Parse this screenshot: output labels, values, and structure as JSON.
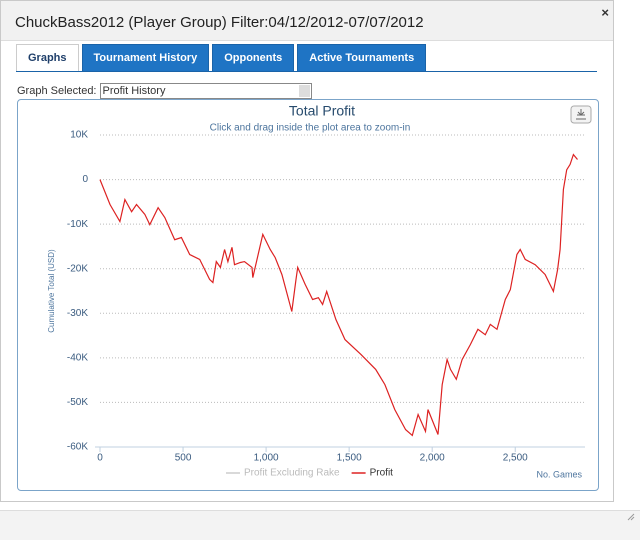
{
  "window": {
    "title": "ChuckBass2012 (Player Group) Filter:04/12/2012-07/07/2012",
    "close": "×",
    "tabs": [
      "Graphs",
      "Tournament History",
      "Opponents",
      "Active Tournaments"
    ],
    "active_tab": 0,
    "graph_selector": {
      "label": "Graph Selected:",
      "value": "Profit History"
    }
  },
  "chart_data": {
    "type": "line",
    "title": "Total Profit",
    "subtitle": "Click and drag inside the plot area to zoom-in",
    "y_label": "Cumulative Total (USD)",
    "x_label": "No. Games",
    "x": [
      0,
      60,
      120,
      150,
      190,
      220,
      270,
      300,
      350,
      390,
      450,
      490,
      540,
      600,
      660,
      680,
      700,
      725,
      750,
      770,
      795,
      810,
      845,
      870,
      915,
      920,
      980,
      1025,
      1055,
      1095,
      1155,
      1180,
      1190,
      1235,
      1280,
      1315,
      1340,
      1365,
      1420,
      1475,
      1570,
      1660,
      1715,
      1775,
      1840,
      1880,
      1915,
      1960,
      1975,
      2035,
      2060,
      2090,
      2110,
      2145,
      2180,
      2230,
      2275,
      2320,
      2350,
      2390,
      2440,
      2470,
      2510,
      2530,
      2560,
      2620,
      2680,
      2730,
      2755,
      2770,
      2790,
      2810,
      2830,
      2850,
      2875
    ],
    "series": [
      {
        "name": "Profit Excluding Rake",
        "color": "#cccccc",
        "visible": false
      },
      {
        "name": "Profit",
        "color": "#dd2222",
        "visible": true,
        "values": [
          0,
          -5600,
          -9400,
          -4500,
          -7200,
          -5600,
          -7800,
          -10100,
          -6300,
          -8500,
          -13500,
          -13000,
          -16800,
          -17900,
          -22400,
          -23100,
          -18400,
          -19700,
          -15700,
          -18400,
          -15200,
          -19100,
          -18600,
          -18400,
          -19700,
          -22000,
          -12300,
          -15700,
          -17500,
          -21300,
          -29600,
          -22400,
          -19700,
          -23500,
          -26900,
          -26500,
          -28000,
          -25100,
          -31400,
          -35900,
          -39200,
          -42600,
          -46000,
          -51600,
          -56100,
          -57400,
          -52700,
          -56500,
          -51600,
          -57200,
          -46000,
          -40400,
          -42600,
          -44800,
          -40400,
          -37000,
          -33600,
          -34800,
          -32500,
          -33600,
          -26900,
          -24700,
          -16800,
          -15700,
          -17900,
          -19100,
          -21300,
          -25100,
          -20200,
          -15700,
          -2200,
          2200,
          3400,
          5600,
          4500
        ]
      }
    ],
    "xlim": [
      0,
      2920
    ],
    "ylim": [
      -60000,
      10000
    ],
    "xticks": [
      0,
      500,
      {
        "value": 1000,
        "label": "1,000"
      },
      {
        "value": 1500,
        "label": "1,500"
      },
      {
        "value": 2000,
        "label": "2,000"
      },
      {
        "value": 2500,
        "label": "2,500"
      }
    ],
    "yticks": [
      {
        "value": 10000,
        "label": "10K"
      },
      0,
      {
        "value": -10000,
        "label": "-10K"
      },
      {
        "value": -20000,
        "label": "-20K"
      },
      {
        "value": -30000,
        "label": "-30K"
      },
      {
        "value": -40000,
        "label": "-40K"
      },
      {
        "value": -50000,
        "label": "-50K"
      },
      {
        "value": -60000,
        "label": "-60K"
      }
    ],
    "grid": true
  }
}
